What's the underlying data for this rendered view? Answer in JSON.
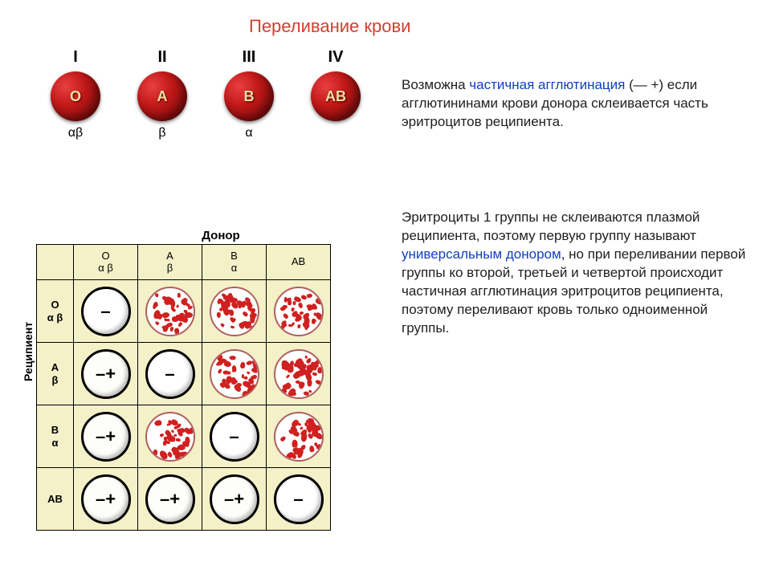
{
  "title": "Переливание крови",
  "blood_types": [
    {
      "roman": "I",
      "antigen": "O",
      "agglutinin": "αβ"
    },
    {
      "roman": "II",
      "antigen": "A",
      "agglutinin": "β"
    },
    {
      "roman": "III",
      "antigen": "B",
      "agglutinin": "α"
    },
    {
      "roman": "IV",
      "antigen": "AB",
      "agglutinin": ""
    }
  ],
  "paragraphs": {
    "p1_pre": "Возможна ",
    "p1_hl": "частичная агглютинация",
    "p1_post": " (— +) если агглютининами крови донора склеивается часть эритроцитов реципиента.",
    "p2_pre": "Эритроциты 1 группы не склеиваются плазмой реципиента, поэтому первую группу называют ",
    "p2_hl": "универсальным донором",
    "p2_post": ", но при переливании первой группы ко второй, третьей и четвертой происходит частичная агглютинация эритроцитов реципиента, поэтому переливают кровь только одноименной группы."
  },
  "table": {
    "donor_label": "Донор",
    "recipient_label": "Реципиент",
    "col_heads": [
      {
        "t1": "O",
        "t2": "α β"
      },
      {
        "t1": "A",
        "t2": "β"
      },
      {
        "t1": "B",
        "t2": "α"
      },
      {
        "t1": "AB",
        "t2": ""
      }
    ],
    "row_heads": [
      {
        "t1": "O",
        "t2": "α β"
      },
      {
        "t1": "A",
        "t2": "β"
      },
      {
        "t1": "B",
        "t2": "α"
      },
      {
        "t1": "AB",
        "t2": ""
      }
    ],
    "cells": [
      [
        "none",
        "agg",
        "agg",
        "agg"
      ],
      [
        "partial",
        "none",
        "agg",
        "agg"
      ],
      [
        "partial",
        "agg",
        "none",
        "agg"
      ],
      [
        "partial",
        "partial",
        "partial",
        "none"
      ]
    ],
    "symbols": {
      "none": "–",
      "partial": "–+",
      "agg": ""
    }
  },
  "style": {
    "title_color": "#d04030",
    "highlight_color": "#1040c0",
    "cell_bg": "#f4f0c8",
    "blood_gradient": [
      "#e84040",
      "#c01818",
      "#7a0808"
    ],
    "speckle_color": "#d02020",
    "circle_border": "#000000",
    "agg_border": "#b06060",
    "speckle_count": 40
  }
}
